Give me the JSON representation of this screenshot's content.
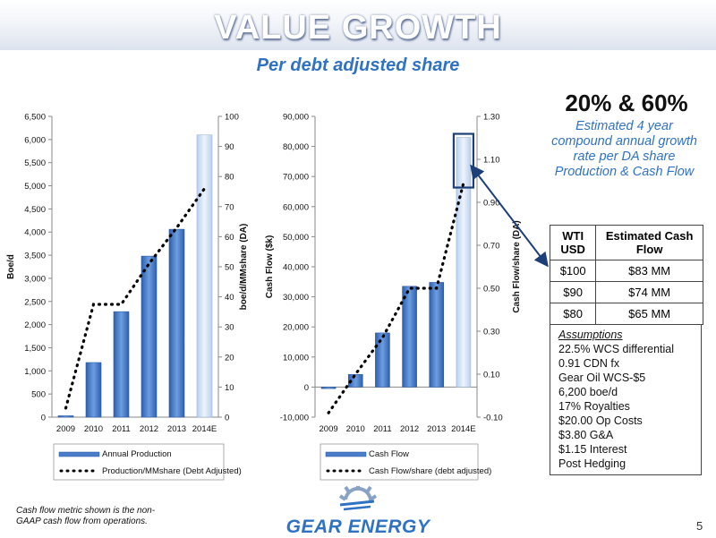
{
  "header": {
    "title": "VALUE GROWTH",
    "subtitle": "Per debt adjusted share"
  },
  "highlight": {
    "big_text": "20%  &  60%",
    "description_lines": [
      "Estimated 4 year",
      "compound annual growth",
      "rate per DA share",
      "Production & Cash Flow"
    ]
  },
  "table": {
    "headers": [
      "WTI USD",
      "Estimated Cash Flow"
    ],
    "rows": [
      [
        "$100",
        "$83 MM"
      ],
      [
        "$90",
        "$74 MM"
      ],
      [
        "$80",
        "$65 MM"
      ]
    ]
  },
  "assumptions": {
    "heading": "Assumptions",
    "items": [
      "22.5% WCS differential",
      "0.91 CDN fx",
      "Gear Oil WCS-$5",
      "6,200 boe/d",
      "17% Royalties",
      "$20.00 Op Costs",
      "$3.80 G&A",
      "$1.15 Interest",
      "Post Hedging"
    ]
  },
  "footnote": "Cash flow metric shown is the non-GAAP cash flow from operations.",
  "logo": {
    "text": "GEAR ENERGY",
    "icon": "gear-icon"
  },
  "page_number": "5",
  "colors": {
    "accent_blue": "#2f72c4",
    "bar_blue": "#4a7cc7",
    "estimate_bar": "#cfe0f5"
  },
  "chart_data": [
    {
      "type": "bar",
      "categories": [
        "2009",
        "2010",
        "2011",
        "2012",
        "2013",
        "2014E"
      ],
      "series": [
        {
          "name": "Annual Production",
          "type": "bar",
          "axis": "left",
          "values": [
            30,
            1180,
            2280,
            3480,
            4060,
            6100
          ]
        },
        {
          "name": "Production/MMshare (Debt Adjusted)",
          "type": "line",
          "axis": "right",
          "style": "dotted",
          "values": [
            3,
            37.5,
            37.5,
            51,
            63,
            76
          ]
        }
      ],
      "ylabel": "Boe/d",
      "y2label": "boe/d/MMshare (DA)",
      "ylim": [
        0,
        6500
      ],
      "y2lim": [
        0,
        100
      ],
      "yticks": [
        "0",
        "500",
        "1,000",
        "1,500",
        "2,000",
        "2,500",
        "3,000",
        "3,500",
        "4,000",
        "4,500",
        "5,000",
        "5,500",
        "6,000",
        "6,500"
      ],
      "y2ticks": [
        "0",
        "10",
        "20",
        "30",
        "40",
        "50",
        "60",
        "70",
        "80",
        "90",
        "100"
      ],
      "estimate_category": "2014E",
      "legend_position": "bottom"
    },
    {
      "type": "bar",
      "categories": [
        "2009",
        "2010",
        "2011",
        "2012",
        "2013",
        "2014E"
      ],
      "series": [
        {
          "name": "Cash Flow",
          "type": "bar",
          "axis": "left",
          "values": [
            -500,
            4200,
            18000,
            33500,
            34800,
            83000
          ]
        },
        {
          "name": "Cash Flow/share (debt adjusted)",
          "type": "line",
          "axis": "right",
          "style": "dotted",
          "values": [
            -0.08,
            0.1,
            0.27,
            0.5,
            0.5,
            0.99
          ]
        }
      ],
      "ylabel": "Cash Flow ($k)",
      "y2label": "Cash Flow/share (DA)",
      "ylim": [
        -10000,
        90000
      ],
      "y2lim": [
        -0.1,
        1.3
      ],
      "yticks": [
        "-10,000",
        "0",
        "10,000",
        "20,000",
        "30,000",
        "40,000",
        "50,000",
        "60,000",
        "70,000",
        "80,000",
        "90,000"
      ],
      "y2ticks": [
        "-0.10",
        "0.10",
        "0.30",
        "0.50",
        "0.70",
        "0.90",
        "1.10",
        "1.30"
      ],
      "estimate_category": "2014E",
      "highlight_box_category": "2014E",
      "legend_position": "bottom"
    }
  ]
}
